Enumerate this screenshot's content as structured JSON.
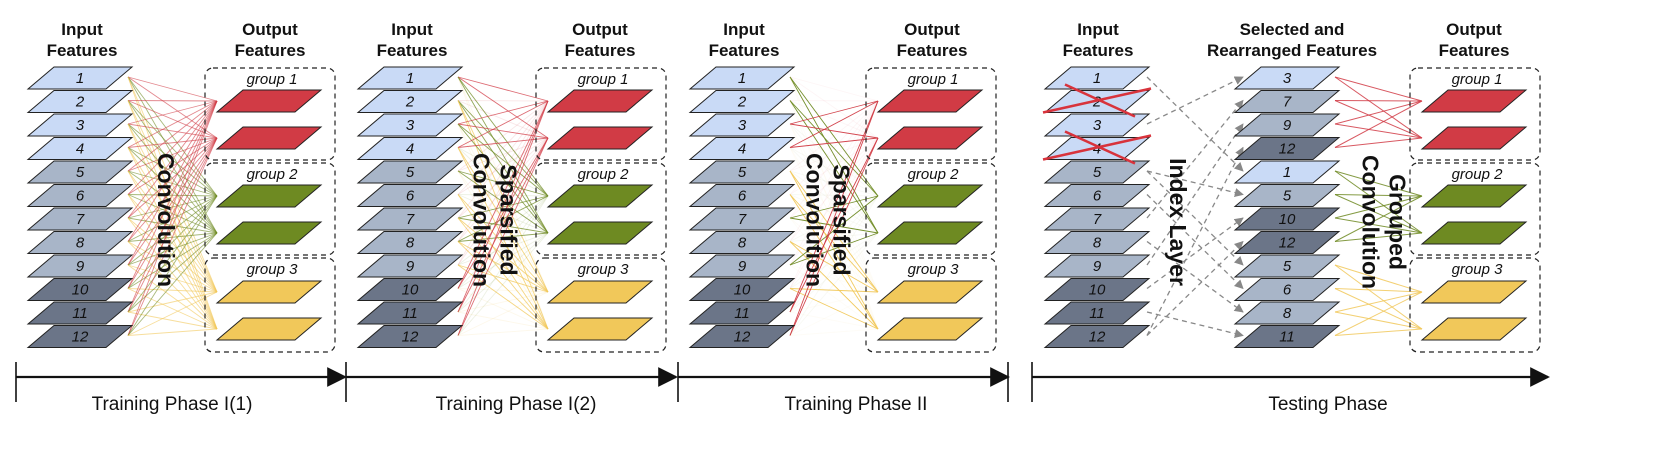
{
  "colors": {
    "feature_light": "#c9daf6",
    "feature_mid": "#a8b5c8",
    "feature_dark": "#6b7588",
    "group1": "#d13b45",
    "group2": "#6e8a22",
    "group3": "#f1c85a",
    "border": "#222222"
  },
  "headers": {
    "input": "Input\nFeatures",
    "output": "Output\nFeatures",
    "selected": "Selected and\nRearranged Features"
  },
  "groups": [
    "group 1",
    "group 2",
    "group 3"
  ],
  "panels": [
    {
      "input_labels": [
        "1",
        "2",
        "3",
        "4",
        "5",
        "6",
        "7",
        "8",
        "9",
        "10",
        "11",
        "12"
      ],
      "center_label": "Convolution",
      "phase_label": "Training Phase I(1)"
    },
    {
      "input_labels": [
        "1",
        "2",
        "3",
        "4",
        "5",
        "6",
        "7",
        "8",
        "9",
        "10",
        "11",
        "12"
      ],
      "center_label": "Sparsified\nConvolution",
      "phase_label": "Training Phase I(2)"
    },
    {
      "input_labels": [
        "1",
        "2",
        "3",
        "4",
        "5",
        "6",
        "7",
        "8",
        "9",
        "10",
        "11",
        "12"
      ],
      "center_label": "Sparsified\nConvolution",
      "phase_label": "Training Phase II"
    },
    {
      "input_labels": [
        "1",
        "2",
        "3",
        "4",
        "5",
        "6",
        "7",
        "8",
        "9",
        "10",
        "11",
        "12"
      ],
      "removed_inputs": [
        "2",
        "4"
      ],
      "index_label": "Index Layer",
      "selected_labels": [
        "3",
        "7",
        "9",
        "12",
        "1",
        "5",
        "10",
        "12",
        "5",
        "6",
        "8",
        "11"
      ],
      "center_label": "Grouped\nConvolution",
      "phase_label": "Testing Phase"
    }
  ]
}
